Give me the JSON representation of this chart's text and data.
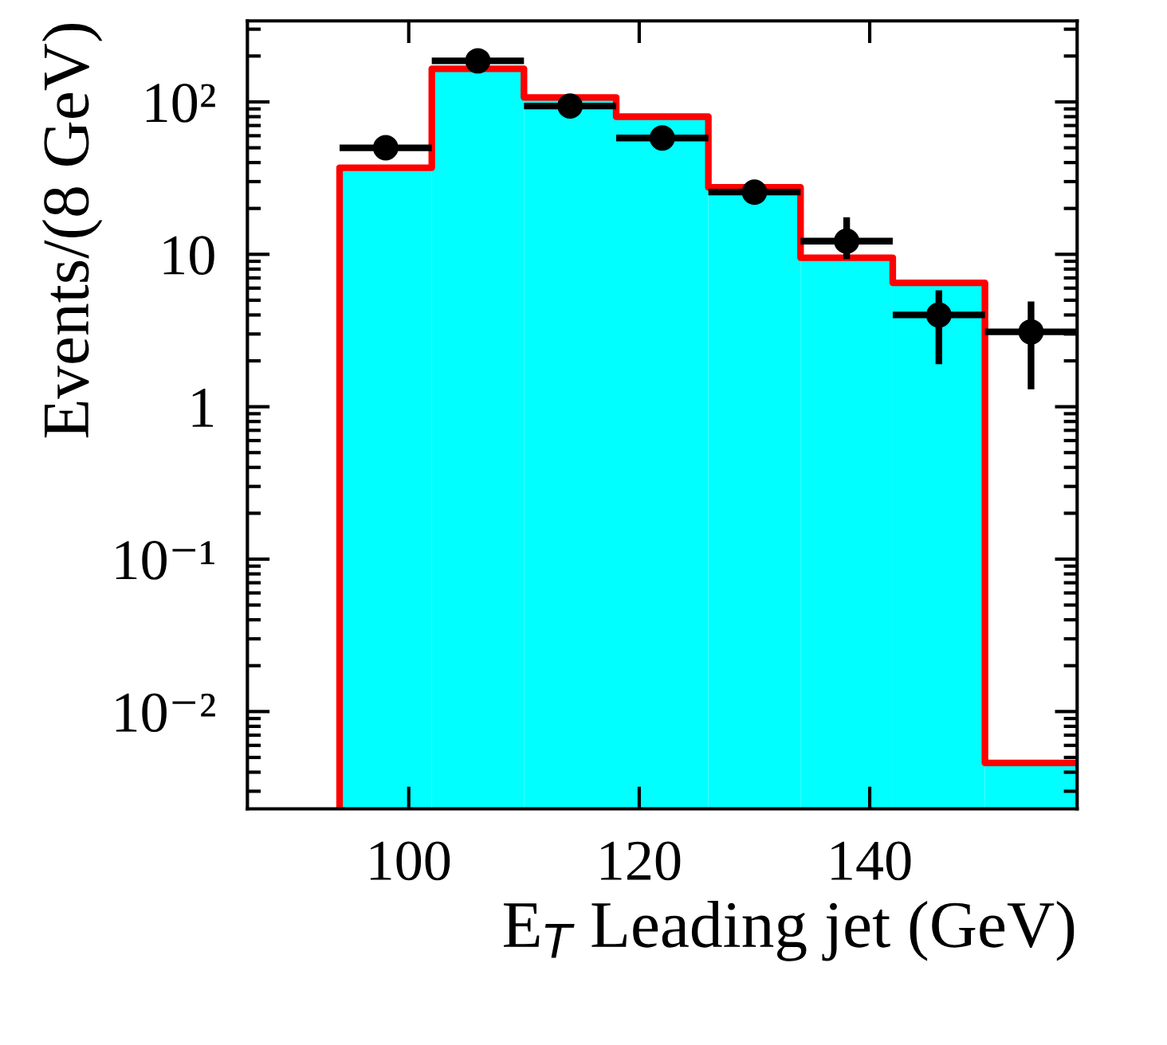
{
  "chart_data": {
    "type": "histogram",
    "xlabel": "E$_{T}$ Leading jet (GeV)",
    "ylabel": "Events/(8 GeV)",
    "bins": [
      94,
      102,
      110,
      118,
      126,
      134,
      142,
      150,
      158
    ],
    "series": [
      {
        "color": "#00ffff",
        "values": [
          37,
          165,
          107,
          80,
          27.5,
          9.5,
          6.5,
          0.0046
        ]
      },
      {
        "type": "step",
        "color": "#ff0000",
        "x": [
          94,
          94,
          102,
          110,
          118,
          126,
          134,
          142,
          150,
          158
        ],
        "values": [
          0.0023,
          37,
          165,
          107,
          80,
          27.5,
          9.5,
          6.5,
          0.0046,
          0.0046
        ]
      },
      {
        "type": "scatter",
        "color": "#000000",
        "marker": "circle",
        "x": [
          98,
          106,
          114,
          122,
          130,
          138,
          146,
          154
        ],
        "values": [
          50,
          186,
          94,
          58,
          25.6,
          12.2,
          4.0,
          3.1
        ],
        "xerrors": [
          4,
          4,
          4,
          4,
          4,
          4,
          4,
          4
        ],
        "errors": [
          null,
          null,
          null,
          null,
          null,
          [
            9.3,
            17.5
          ],
          [
            1.9,
            5.8
          ],
          [
            1.3,
            4.9
          ]
        ]
      }
    ],
    "xlim": [
      86,
      158
    ],
    "xticks": [
      100,
      120,
      140
    ],
    "ylim": [
      0.0023,
      340
    ],
    "yticks": [
      {
        "value": 100,
        "label": "10²"
      },
      10,
      1,
      {
        "value": 0.1,
        "label": "10⁻¹"
      },
      {
        "value": 0.01,
        "label": "10⁻²"
      }
    ],
    "log": "y",
    "grid": false
  }
}
